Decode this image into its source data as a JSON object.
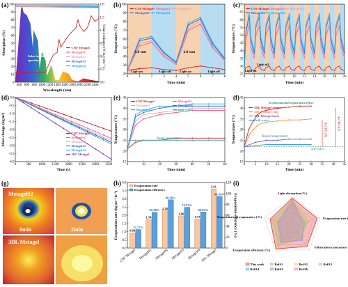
{
  "colors": {
    "cnf": "#cc2222",
    "m1": "#e86080",
    "m2": "#e0a8b8",
    "m3": "#3060d8",
    "m4": "#22a8e8",
    "tdl": "#7a3ab0",
    "bulk": "#22b8a8",
    "rt": "#3a9a90",
    "env": "#1a8a70",
    "orange_bg": "#f6d2b0",
    "blue_bg": "#b8dcf2"
  },
  "panels": {
    "a": {
      "label": "(a)",
      "xlabel": "Wavelength (nm)",
      "ylabel": "Absorption (%)",
      "y2label": "Solar irradiance (W m⁻² nm⁻¹)",
      "solar_text": "Solar irradiation spectrum"
    },
    "b": {
      "label": "(b)",
      "xlabel": "Time (min)",
      "ylabel": "Temperature (°C)",
      "sun1": "1.0 sun",
      "sun2": "2.0 sun",
      "light_on": "Light on",
      "light_off": "Light off"
    },
    "c": {
      "label": "(c)",
      "xlabel": "Time (min)",
      "ylabel": "Temperature (°C)",
      "light_on": "Light on",
      "light_off": "Light off"
    },
    "d": {
      "label": "(d)",
      "xlabel": "Time (s)",
      "ylabel": "Mass change (kg/m²)"
    },
    "e": {
      "label": "(e)",
      "xlabel": "Time (min)",
      "ylabel": "Temperature (°C)",
      "room": "Room temperature"
    },
    "f": {
      "label": "(f)",
      "xlabel": "Time (min)",
      "ylabel": "Temperature (°C)",
      "env": "Environmental temperature effect",
      "room": "Room temperature",
      "dt1": "ΔT=12.5°C",
      "dt2": "ΔT=18.2°C",
      "dt3": "ΔT=3.4°C"
    },
    "g": {
      "label": "(g)",
      "title": "Metagel#2",
      "t0": "0min",
      "t2": "2min",
      "t3dl": "3DL Metagel"
    },
    "h": {
      "label": "(h)",
      "ylabel": "Evaporation rate (kg m⁻² h⁻¹)",
      "y2label": "Evaporation efficiency (%)"
    },
    "i": {
      "label": "(i)"
    }
  },
  "chart_data": [
    {
      "panel": "a",
      "type": "line",
      "xlim": [
        300,
        2500
      ],
      "ylim": [
        0,
        100
      ],
      "y2lim": [
        0,
        1.8
      ],
      "xticks": [
        400,
        600,
        800,
        1000,
        1200,
        1400,
        1600,
        1800,
        2000,
        2200,
        2400
      ],
      "yticks": [
        0,
        10,
        20,
        30,
        40,
        50,
        60,
        70,
        80,
        90,
        100
      ],
      "y2ticks": [
        0.0,
        0.3,
        0.6,
        0.9,
        1.2,
        1.5,
        1.8
      ],
      "series": [
        {
          "name": "CNF Metagel",
          "x": [
            300,
            400,
            500,
            700,
            900,
            1100,
            1200,
            1300,
            1400,
            1450,
            1500,
            1700,
            1900,
            1950,
            2000,
            2100,
            2200,
            2300,
            2400,
            2500
          ],
          "y": [
            12,
            12,
            12,
            12,
            12,
            13,
            25,
            35,
            38,
            55,
            45,
            60,
            70,
            80,
            72,
            65,
            70,
            85,
            78,
            82
          ]
        },
        {
          "name": "Metagel#1",
          "x": [
            300,
            2500
          ],
          "y": [
            97,
            96
          ]
        },
        {
          "name": "Metagel#2",
          "x": [
            300,
            2500
          ],
          "y": [
            97,
            95
          ]
        },
        {
          "name": "Metagel#3",
          "x": [
            300,
            2500
          ],
          "y": [
            98,
            98
          ]
        },
        {
          "name": "Metagel#4",
          "x": [
            300,
            2500
          ],
          "y": [
            98,
            97
          ]
        }
      ]
    },
    {
      "panel": "b",
      "type": "line",
      "xlim": [
        0,
        8
      ],
      "ylim": [
        20,
        100
      ],
      "xticks": [
        0,
        1,
        2,
        3,
        4,
        5,
        6,
        7,
        8
      ],
      "yticks": [
        20,
        30,
        40,
        50,
        60,
        70,
        80,
        90,
        100
      ],
      "series": [
        {
          "name": "CNF Metagel",
          "x": [
            0,
            1,
            2,
            3,
            4,
            5,
            6,
            7,
            8
          ],
          "y": [
            24,
            26,
            27,
            25,
            24,
            27,
            29,
            27,
            25
          ]
        },
        {
          "name": "Metagel#1",
          "x": [
            0,
            1,
            2,
            3,
            4,
            5,
            6,
            7,
            8
          ],
          "y": [
            24,
            52,
            56,
            40,
            31,
            70,
            77,
            50,
            35
          ]
        },
        {
          "name": "Metagel#2",
          "x": [
            0,
            1,
            2,
            3,
            4,
            5,
            6,
            7,
            8
          ],
          "y": [
            24,
            55,
            58,
            42,
            32,
            73,
            80,
            52,
            36
          ]
        },
        {
          "name": "Metagel#3",
          "x": [
            0,
            1,
            2,
            3,
            4,
            5,
            6,
            7,
            8
          ],
          "y": [
            24,
            58,
            61,
            44,
            33,
            76,
            83,
            54,
            37
          ]
        },
        {
          "name": "Metagel#4",
          "x": [
            0,
            1,
            2,
            3,
            4,
            5,
            6,
            7,
            8
          ],
          "y": [
            24,
            60,
            63,
            45,
            34,
            78,
            85,
            56,
            38
          ]
        }
      ]
    },
    {
      "panel": "c",
      "type": "line",
      "xlim": [
        0,
        20
      ],
      "ylim": [
        25,
        70
      ],
      "xticks": [
        0,
        2,
        4,
        6,
        8,
        10,
        12,
        14,
        16,
        18,
        20
      ],
      "yticks": [
        25,
        30,
        35,
        40,
        45,
        50,
        55,
        60,
        65,
        70
      ],
      "series": [
        {
          "name": "CNF Metagel",
          "cycle_peak": 30,
          "cycle_min": 27
        },
        {
          "name": "Metagel#1",
          "cycle_peak": 56,
          "cycle_min": 35
        },
        {
          "name": "Metagel#2",
          "cycle_peak": 58,
          "cycle_min": 36
        },
        {
          "name": "Metagel#3",
          "cycle_peak": 62,
          "cycle_min": 38
        },
        {
          "name": "Metagel#4",
          "cycle_peak": 64,
          "cycle_min": 40
        }
      ]
    },
    {
      "panel": "d",
      "type": "line",
      "xlim": [
        0,
        3600
      ],
      "ylim": [
        -4.0,
        0.0
      ],
      "xticks": [
        0,
        500,
        1000,
        1500,
        2000,
        2500,
        3000,
        3500
      ],
      "yticks": [
        0.0,
        -0.5,
        -1.0,
        -1.5,
        -2.0,
        -2.5,
        -3.0,
        -3.5,
        -4.0
      ],
      "series": [
        {
          "name": "CNF Metagel",
          "x": [
            0,
            3600
          ],
          "y": [
            0,
            -2.1
          ]
        },
        {
          "name": "Metagel#1",
          "x": [
            0,
            3600
          ],
          "y": [
            0,
            -2.55
          ]
        },
        {
          "name": "Metagel#2",
          "x": [
            0,
            3600
          ],
          "y": [
            0,
            -2.7
          ]
        },
        {
          "name": "Metagel#3",
          "x": [
            0,
            3600
          ],
          "y": [
            0,
            -2.8
          ]
        },
        {
          "name": "Metagel#4",
          "x": [
            0,
            3600
          ],
          "y": [
            0,
            -2.9
          ]
        },
        {
          "name": "3DL Metagel",
          "x": [
            0,
            3600
          ],
          "y": [
            0,
            -3.85
          ]
        }
      ]
    },
    {
      "panel": "e",
      "type": "line",
      "xlim": [
        0,
        60
      ],
      "ylim": [
        15,
        45
      ],
      "xticks": [
        0,
        10,
        20,
        30,
        40,
        50,
        60
      ],
      "yticks": [
        15,
        20,
        25,
        30,
        35,
        40,
        45
      ],
      "series": [
        {
          "name": "CNF Metagel",
          "x": [
            0,
            5,
            10,
            20,
            30,
            40,
            50,
            60
          ],
          "y": [
            21,
            24,
            25,
            25,
            26,
            26,
            26,
            26
          ]
        },
        {
          "name": "Metagel#1",
          "x": [
            0,
            5,
            10,
            20,
            30,
            40,
            50,
            60
          ],
          "y": [
            21,
            32,
            35,
            37,
            38,
            39,
            39,
            39
          ]
        },
        {
          "name": "Metagel#2",
          "x": [
            0,
            5,
            10,
            20,
            30,
            40,
            50,
            60
          ],
          "y": [
            21,
            34,
            37,
            38,
            39,
            40,
            40,
            40
          ]
        },
        {
          "name": "Metagel#3",
          "x": [
            0,
            5,
            10,
            20,
            30,
            40,
            50,
            60
          ],
          "y": [
            21,
            36,
            38,
            40,
            41,
            41,
            41,
            41
          ]
        },
        {
          "name": "Metagel#4",
          "x": [
            0,
            5,
            10,
            20,
            30,
            40,
            50,
            60
          ],
          "y": [
            21,
            37,
            39,
            41,
            41,
            42,
            42,
            42
          ]
        },
        {
          "name": "Bulk water",
          "x": [
            0,
            5,
            10,
            20,
            30,
            40,
            50,
            60
          ],
          "y": [
            25,
            25,
            25,
            25,
            25,
            25,
            25,
            25
          ]
        }
      ]
    },
    {
      "panel": "f",
      "type": "line",
      "xlim": [
        0,
        45
      ],
      "ylim": [
        15,
        45
      ],
      "xticks": [
        0,
        5,
        10,
        15,
        20,
        25,
        30,
        35,
        40,
        45
      ],
      "yticks": [
        15,
        20,
        25,
        30,
        35,
        40,
        45
      ],
      "series": [
        {
          "name": "3DL Metagel center",
          "x": [
            0,
            2,
            4,
            6,
            8,
            10,
            15,
            20,
            25,
            30
          ],
          "y": [
            22,
            30,
            34,
            37,
            38.5,
            39,
            40,
            40.5,
            41,
            41
          ]
        },
        {
          "name": "3DL Metagel edge",
          "x": [
            0,
            2,
            4,
            6,
            8,
            10,
            15,
            20,
            25,
            30
          ],
          "y": [
            22,
            27,
            30,
            32,
            33,
            33.5,
            34,
            34.5,
            34.5,
            35
          ]
        },
        {
          "name": "3DL Metagel back",
          "x": [
            0,
            5,
            10,
            15,
            20,
            25,
            30
          ],
          "y": [
            22,
            24,
            25,
            25,
            25.5,
            25.5,
            25.5
          ]
        },
        {
          "name": "Bulk water",
          "x": [
            0,
            5,
            10,
            15,
            20,
            25,
            30
          ],
          "y": [
            22,
            22.5,
            23,
            23,
            23,
            23,
            23
          ]
        }
      ]
    },
    {
      "panel": "h",
      "type": "bar",
      "ylim": [
        0,
        4.0
      ],
      "y2lim": [
        0,
        120
      ],
      "yticks": [
        0.0,
        0.5,
        1.0,
        1.5,
        2.0,
        2.5,
        3.0,
        3.5,
        4.0
      ],
      "y2ticks": [
        0,
        20,
        40,
        60,
        80,
        100,
        120
      ],
      "categories": [
        "CNF Metagel",
        "Metagel#1",
        "Metagel#2",
        "Metagel#3",
        "Metagel#4",
        "3DL Metagel"
      ],
      "series": [
        {
          "name": "Evaporation rate",
          "values": [
            0.93,
            1.74,
            2.28,
            1.96,
            1.77,
            3.61
          ],
          "labels": [
            "0.93",
            "1.74",
            "2.28",
            "1.96",
            "1.77",
            "3.61"
          ]
        },
        {
          "name": "Evaporation efficiency",
          "values": [
            33.77,
            65.48,
            88.26,
            74.53,
            66.03,
            94.54
          ],
          "labels": [
            "33.77%",
            "65.48%",
            "88.26%",
            "74.53%",
            "66.03%",
            "94.54%"
          ]
        }
      ]
    },
    {
      "panel": "i",
      "type": "radar",
      "axes": [
        "Light absorption (%)",
        "Evaporation rate (kg m⁻² h⁻¹)",
        "Fabrication conciseness",
        "Evaporation efficiency (%)",
        "Temperature of evaporators (°C)"
      ],
      "axis_ticks": [
        "100",
        "4",
        "",
        "100",
        "60"
      ],
      "series": [
        {
          "name": "This work",
          "values": [
            0.97,
            0.9,
            0.85,
            0.95,
            0.8
          ]
        },
        {
          "name": "RefA1",
          "values": [
            0.9,
            0.55,
            0.5,
            0.8,
            0.65
          ]
        },
        {
          "name": "RefA2",
          "values": [
            0.85,
            0.5,
            0.45,
            0.75,
            0.6
          ]
        },
        {
          "name": "RefA3",
          "values": [
            0.92,
            0.6,
            0.4,
            0.85,
            0.7
          ]
        },
        {
          "name": "RefA4",
          "values": [
            0.88,
            0.45,
            0.55,
            0.7,
            0.55
          ]
        },
        {
          "name": "RefA5",
          "values": [
            0.8,
            0.4,
            0.6,
            0.65,
            0.5
          ]
        },
        {
          "name": "RefA6",
          "values": [
            0.95,
            0.35,
            0.35,
            0.6,
            0.45
          ]
        }
      ]
    }
  ]
}
